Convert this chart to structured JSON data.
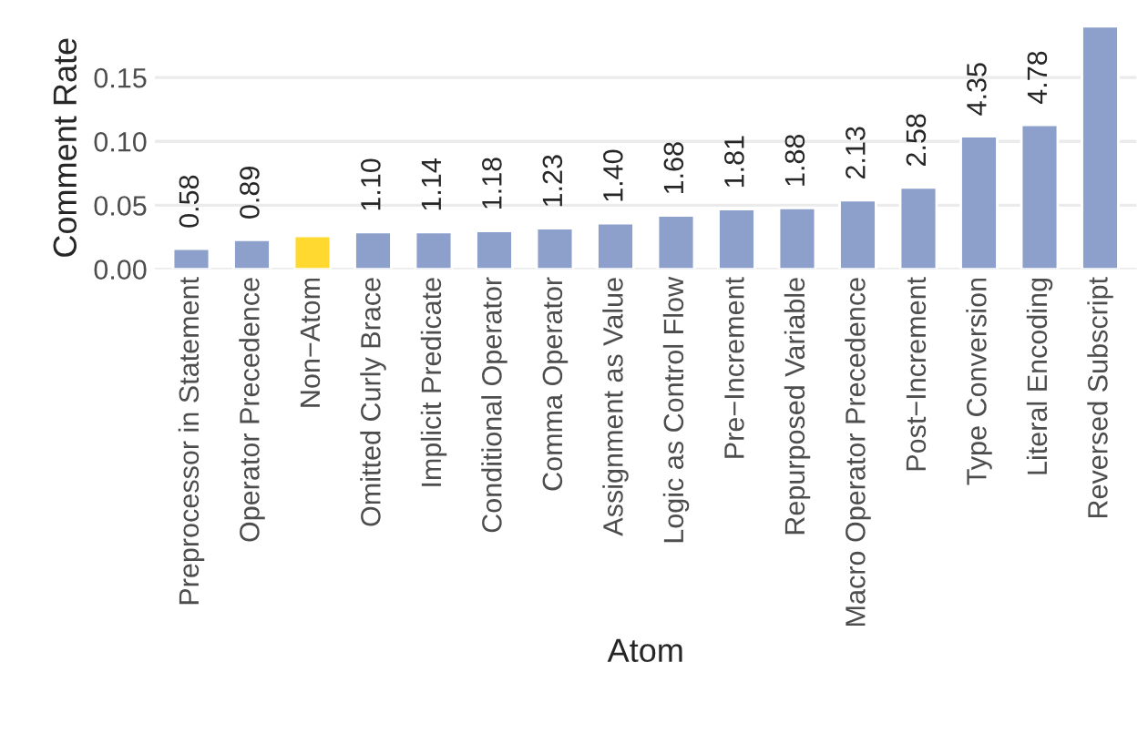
{
  "chart_data": {
    "type": "bar",
    "xlabel": "Atom",
    "ylabel": "Comment Rate",
    "categories": [
      "Preprocessor in Statement",
      "Operator Precedence",
      "Non−Atom",
      "Omitted Curly Brace",
      "Implicit Predicate",
      "Conditional Operator",
      "Comma Operator",
      "Assignment as Value",
      "Logic as Control Flow",
      "Pre−Increment",
      "Repurposed Variable",
      "Macro Operator Precedence",
      "Post−Increment",
      "Type Conversion",
      "Literal Encoding",
      "Reversed Subscript"
    ],
    "values": [
      0.016,
      0.023,
      0.026,
      0.029,
      0.029,
      0.03,
      0.032,
      0.036,
      0.042,
      0.047,
      0.048,
      0.054,
      0.064,
      0.104,
      0.113,
      0.19
    ],
    "colors": [
      "#8da0cb",
      "#8da0cb",
      "#ffd92f",
      "#8da0cb",
      "#8da0cb",
      "#8da0cb",
      "#8da0cb",
      "#8da0cb",
      "#8da0cb",
      "#8da0cb",
      "#8da0cb",
      "#8da0cb",
      "#8da0cb",
      "#8da0cb",
      "#8da0cb",
      "#8da0cb"
    ],
    "annotations": [
      {
        "text": "0.58",
        "x": "Preprocessor in Statement",
        "y": 0.016
      },
      {
        "text": "0.89",
        "x": "Operator Precedence",
        "y": 0.023
      },
      {
        "text": "1.10",
        "x": "Omitted Curly Brace",
        "y": 0.029
      },
      {
        "text": "1.14",
        "x": "Implicit Predicate",
        "y": 0.029
      },
      {
        "text": "1.18",
        "x": "Conditional Operator",
        "y": 0.03
      },
      {
        "text": "1.23",
        "x": "Comma Operator",
        "y": 0.032
      },
      {
        "text": "1.40",
        "x": "Assignment as Value",
        "y": 0.036
      },
      {
        "text": "1.68",
        "x": "Logic as Control Flow",
        "y": 0.042
      },
      {
        "text": "1.81",
        "x": "Pre−Increment",
        "y": 0.047
      },
      {
        "text": "1.88",
        "x": "Repurposed Variable",
        "y": 0.048
      },
      {
        "text": "2.13",
        "x": "Macro Operator Precedence",
        "y": 0.054
      },
      {
        "text": "2.58",
        "x": "Post−Increment",
        "y": 0.064
      },
      {
        "text": "4.35",
        "x": "Type Conversion",
        "y": 0.104
      },
      {
        "text": "4.78",
        "x": "Literal Encoding",
        "y": 0.113
      }
    ],
    "ylim": [
      0,
      0.19
    ],
    "yticks": [
      {
        "value": 0,
        "label": "0.00"
      },
      0.05,
      {
        "value": 0.1,
        "label": "0.10"
      },
      0.15
    ],
    "grid": "y",
    "legend": false
  }
}
